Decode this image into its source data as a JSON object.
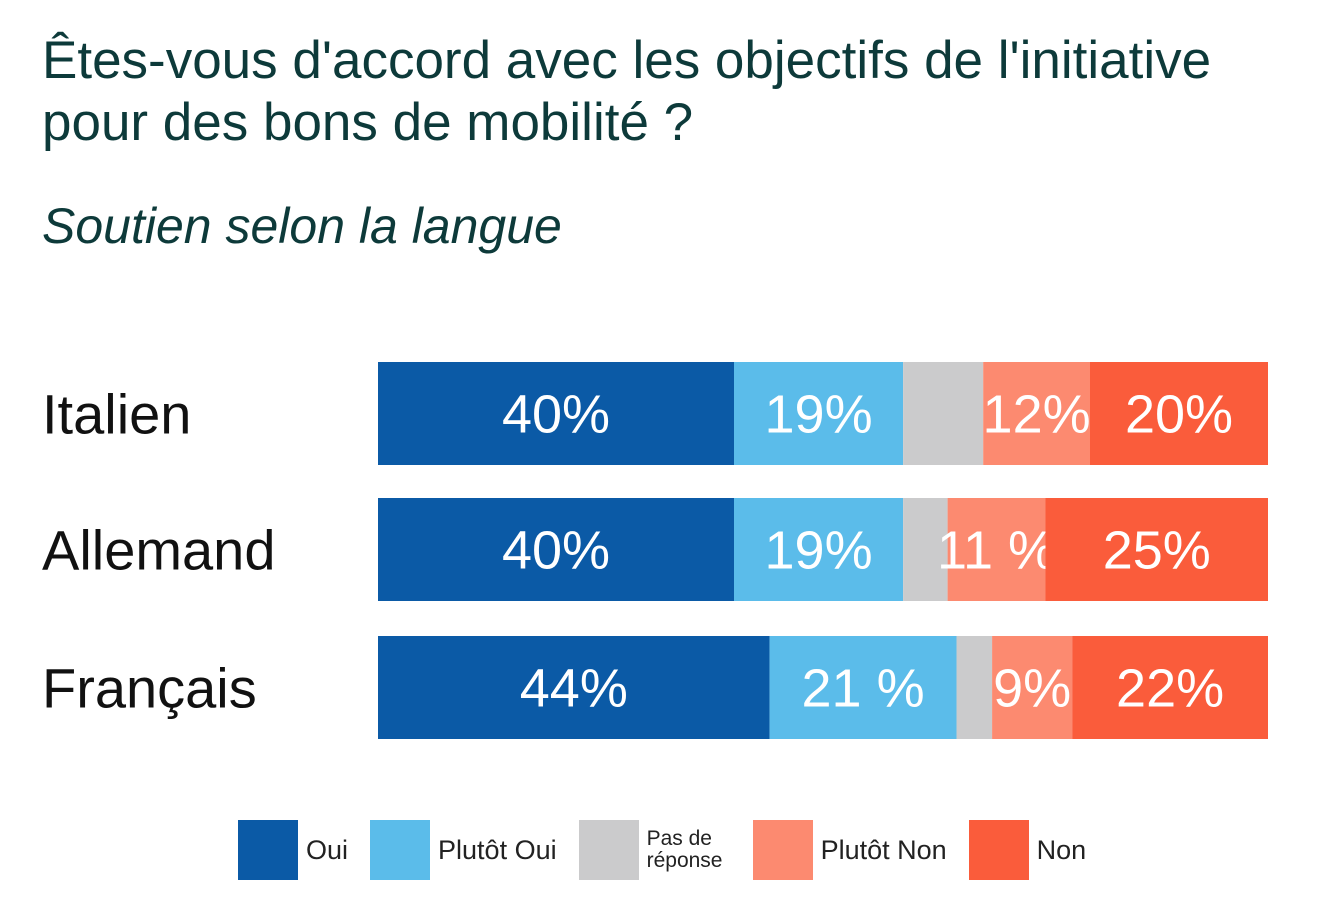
{
  "title": "Êtes-vous d'accord avec les objectifs de l'initiative pour des bons de mobilité ?",
  "subtitle": "Soutien selon la langue",
  "chart_data": {
    "type": "bar",
    "orientation": "horizontal",
    "stacked": true,
    "categories": [
      "Italien",
      "Allemand",
      "Français"
    ],
    "series": [
      {
        "name": "Oui",
        "color": "#0b5aa6",
        "values": [
          40,
          40,
          44
        ],
        "labels": [
          "40%",
          "40%",
          "44%"
        ]
      },
      {
        "name": "Plutôt Oui",
        "color": "#5bbcea",
        "values": [
          19,
          19,
          21
        ],
        "labels": [
          "19%",
          "19%",
          "21 %"
        ]
      },
      {
        "name": "Pas de réponse",
        "color": "#cbcbcc",
        "values": [
          9,
          5,
          4
        ],
        "labels": [
          "",
          "",
          ""
        ]
      },
      {
        "name": "Plutôt Non",
        "color": "#fc8a70",
        "values": [
          12,
          11,
          9
        ],
        "labels": [
          "12%",
          "11 %",
          "9%"
        ]
      },
      {
        "name": "Non",
        "color": "#fa5c3b",
        "values": [
          20,
          25,
          22
        ],
        "labels": [
          "20%",
          "25%",
          "22%"
        ]
      }
    ],
    "xlim": [
      0,
      100
    ],
    "legend_position": "bottom",
    "grid": false
  },
  "legend": [
    {
      "label": "Oui",
      "color": "#0b5aa6",
      "small": false
    },
    {
      "label": "Plutôt Oui",
      "color": "#5bbcea",
      "small": false
    },
    {
      "label": "Pas de réponse",
      "color": "#cbcbcc",
      "small": true
    },
    {
      "label": "Plutôt Non",
      "color": "#fc8a70",
      "small": false
    },
    {
      "label": "Non",
      "color": "#fa5c3b",
      "small": false
    }
  ]
}
